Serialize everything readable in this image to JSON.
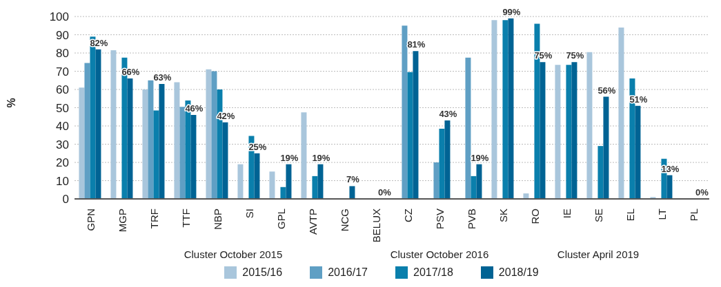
{
  "chart_data": {
    "type": "bar",
    "ylabel": "%",
    "categories": [
      "GPN",
      "MGP",
      "TRF",
      "TTF",
      "NBP",
      "SI",
      "GPL",
      "AVTP",
      "NCG",
      "BELUX",
      "CZ",
      "PSV",
      "PVB",
      "SK",
      "RO",
      "IE",
      "SE",
      "EL",
      "LT",
      "PL"
    ],
    "series": [
      {
        "name": "2015/16",
        "color": "#a9c6dc",
        "values": [
          61,
          81.5,
          60,
          64,
          71,
          19,
          15,
          47.5,
          null,
          null,
          null,
          null,
          null,
          98,
          3,
          73.5,
          80.5,
          94,
          1,
          null
        ]
      },
      {
        "name": "2016/17",
        "color": "#5f9fc4",
        "values": [
          74.5,
          null,
          65,
          50.5,
          70,
          null,
          null,
          null,
          null,
          null,
          95,
          20,
          77.5,
          null,
          null,
          null,
          null,
          null,
          null,
          null
        ]
      },
      {
        "name": "2017/18",
        "color": "#0a7fac",
        "values": [
          89,
          77.5,
          48.5,
          54,
          60,
          34.5,
          6.5,
          12.5,
          null,
          null,
          69.5,
          38.5,
          12.5,
          98,
          96,
          73.5,
          29,
          66,
          22,
          null
        ]
      },
      {
        "name": "2018/19",
        "color": "#006394",
        "values": [
          82,
          66,
          63,
          46,
          42,
          25,
          19,
          19,
          7,
          0,
          81,
          43,
          19,
          99,
          75,
          75,
          56,
          51,
          13,
          0
        ],
        "value_labels": [
          "82%",
          "66%",
          "63%",
          "46%",
          "42%",
          "25%",
          "19%",
          "19%",
          "7%",
          "0%",
          "81%",
          "43%",
          "19%",
          "99%",
          "75%",
          "75%",
          "56%",
          "51%",
          "13%",
          "0%"
        ]
      }
    ],
    "ylim": [
      0,
      100
    ],
    "yticks": [
      0,
      10,
      20,
      30,
      40,
      50,
      60,
      70,
      80,
      90,
      100
    ],
    "grid": "y",
    "legend": "bottom",
    "annotations": [
      "Cluster October 2015",
      "Cluster October 2016",
      "Cluster April 2019"
    ]
  }
}
